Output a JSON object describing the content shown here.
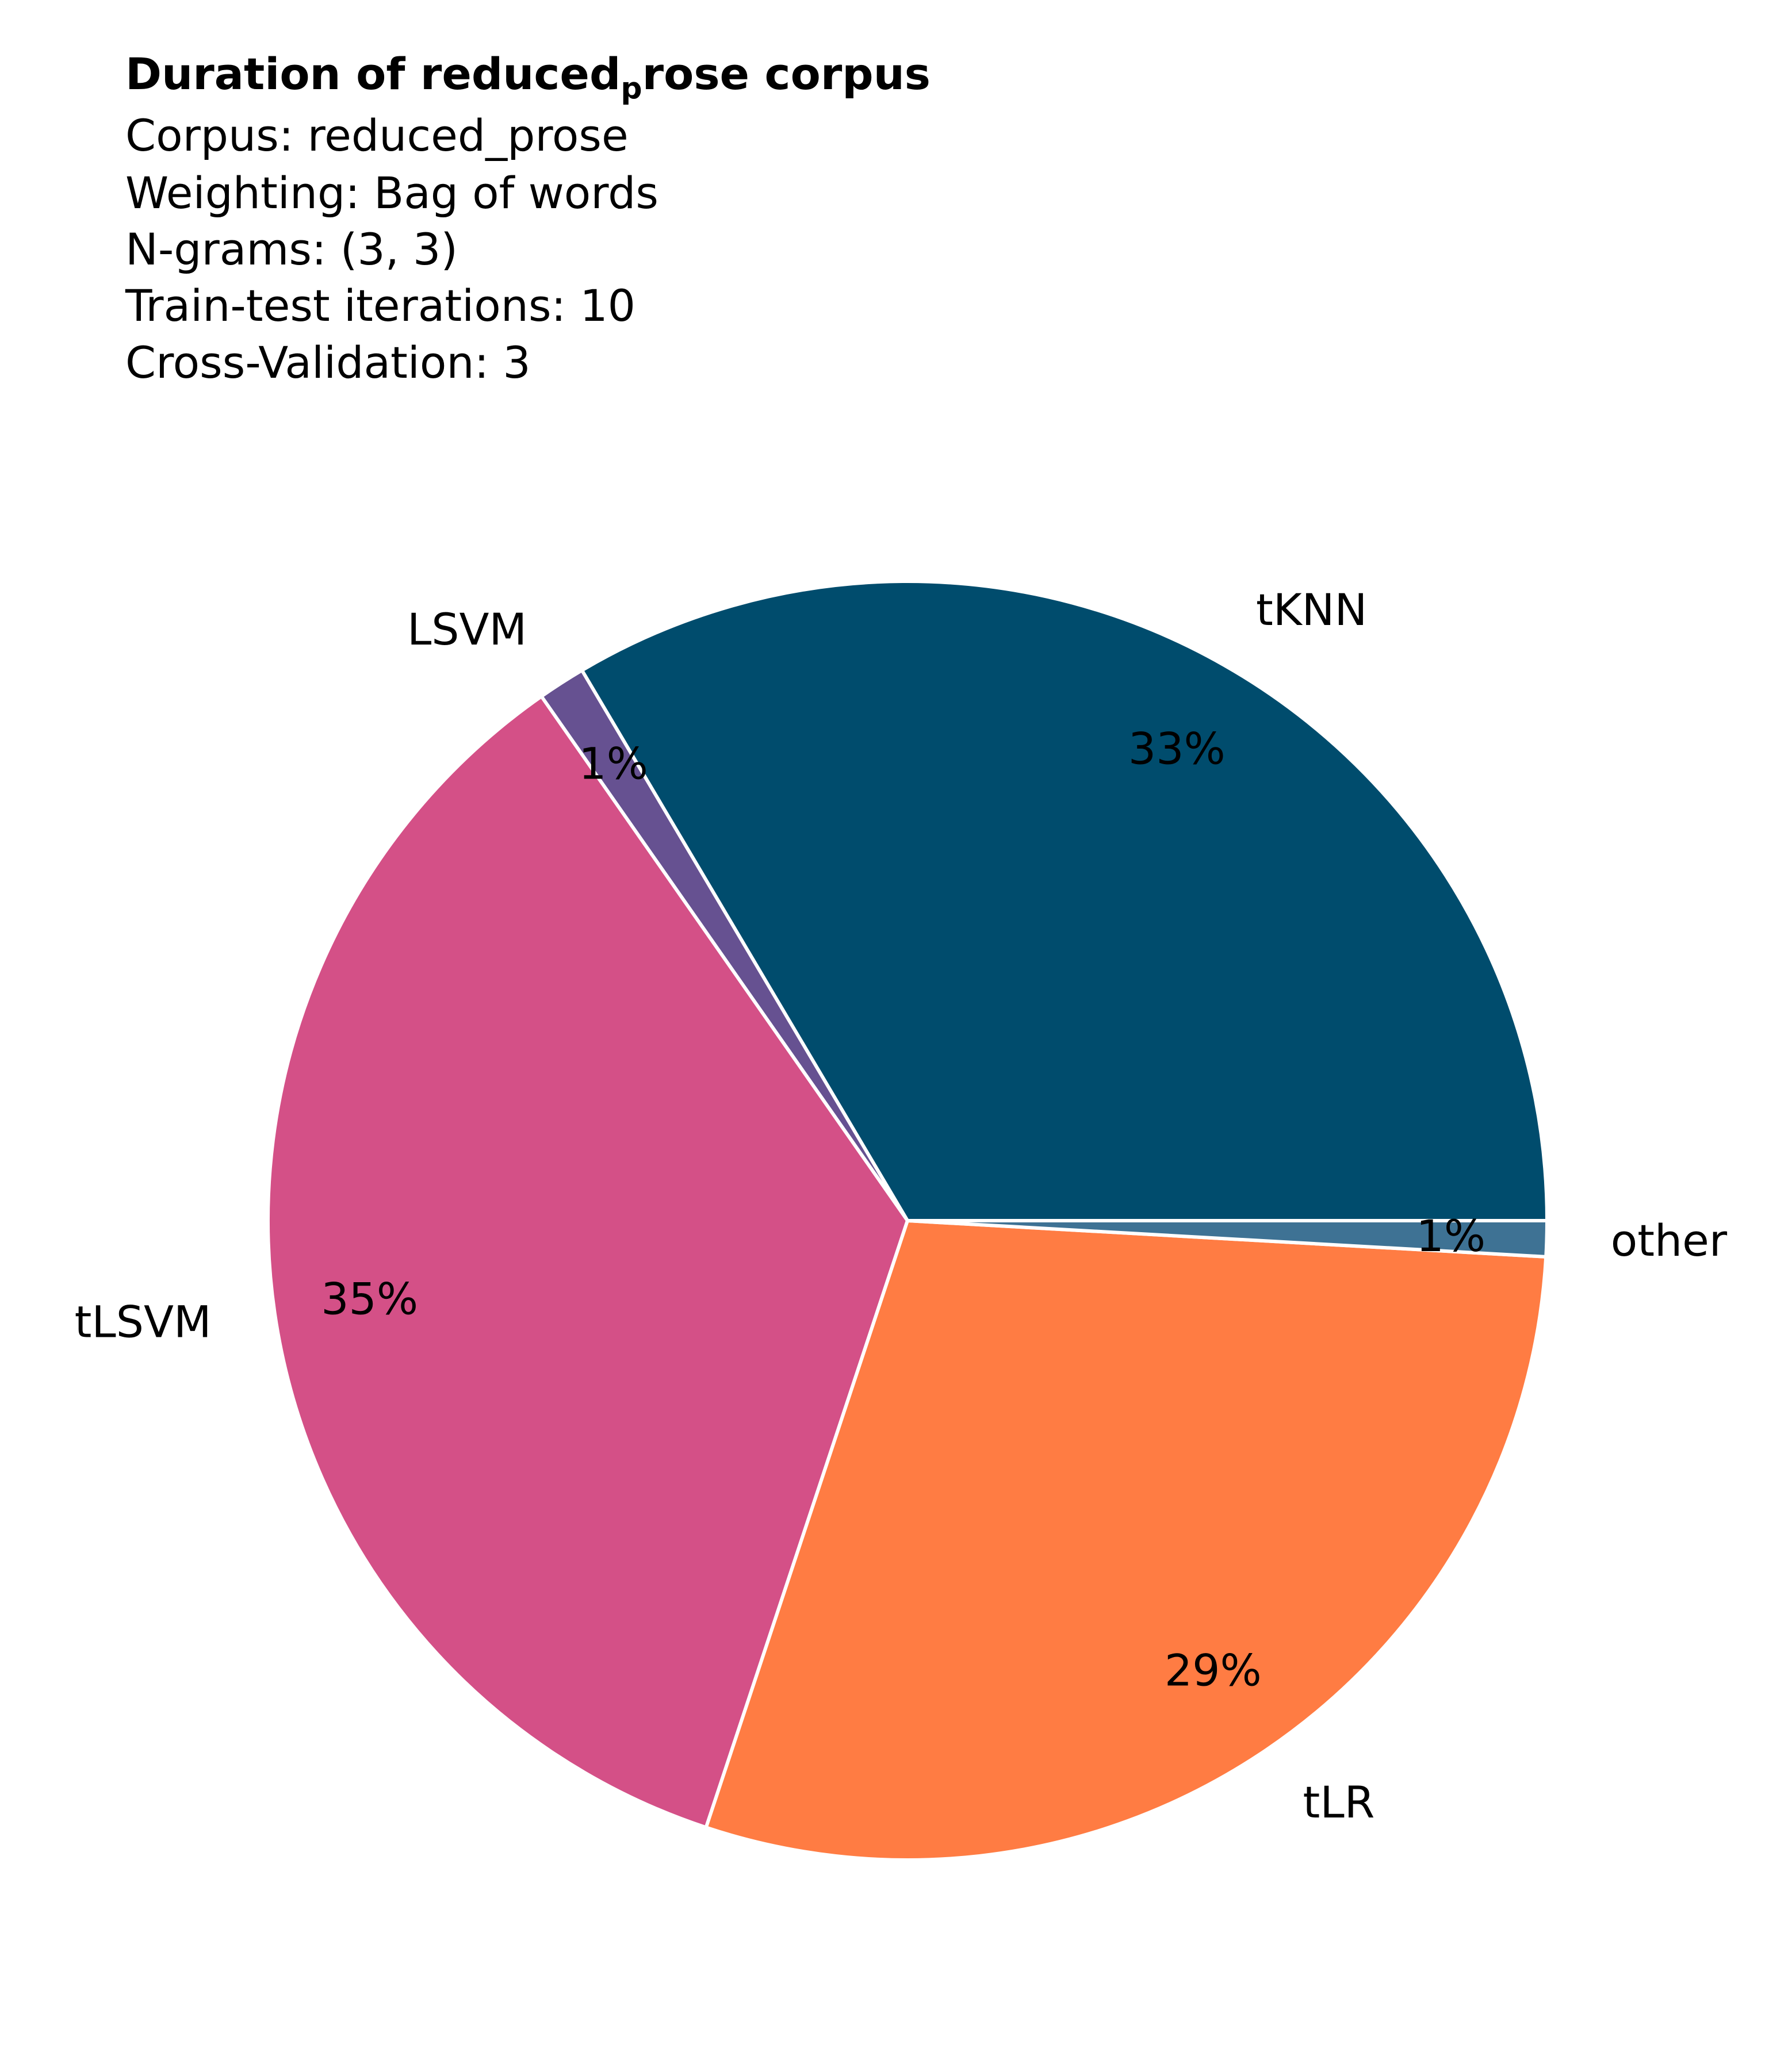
{
  "chart_data": {
    "type": "pie",
    "title": "Duration of reduced_prose corpus",
    "title_parts": {
      "main": "Duration of reduced",
      "subscript": "p",
      "rest": "rose corpus"
    },
    "subtitle_lines": [
      "Corpus: reduced_prose",
      "Weighting: Bag of words",
      "N-grams: (3, 3)",
      "Train-test iterations: 10",
      "Cross-Validation: 3"
    ],
    "slices": [
      {
        "label": "tKNN",
        "value": 33.5,
        "pct_label": "33%",
        "color": "#004c6d"
      },
      {
        "label": "LSVM",
        "value": 1.2,
        "pct_label": "1%",
        "color": "#665191"
      },
      {
        "label": "tLSVM",
        "value": 35.2,
        "pct_label": "35%",
        "color": "#d45087"
      },
      {
        "label": "tLR",
        "value": 29.2,
        "pct_label": "29%",
        "color": "#ff7c43"
      },
      {
        "label": "other",
        "value": 0.9,
        "pct_label": "1%",
        "color": "#3e7294"
      }
    ],
    "start_angle_deg": 0,
    "direction": "counterclockwise"
  }
}
